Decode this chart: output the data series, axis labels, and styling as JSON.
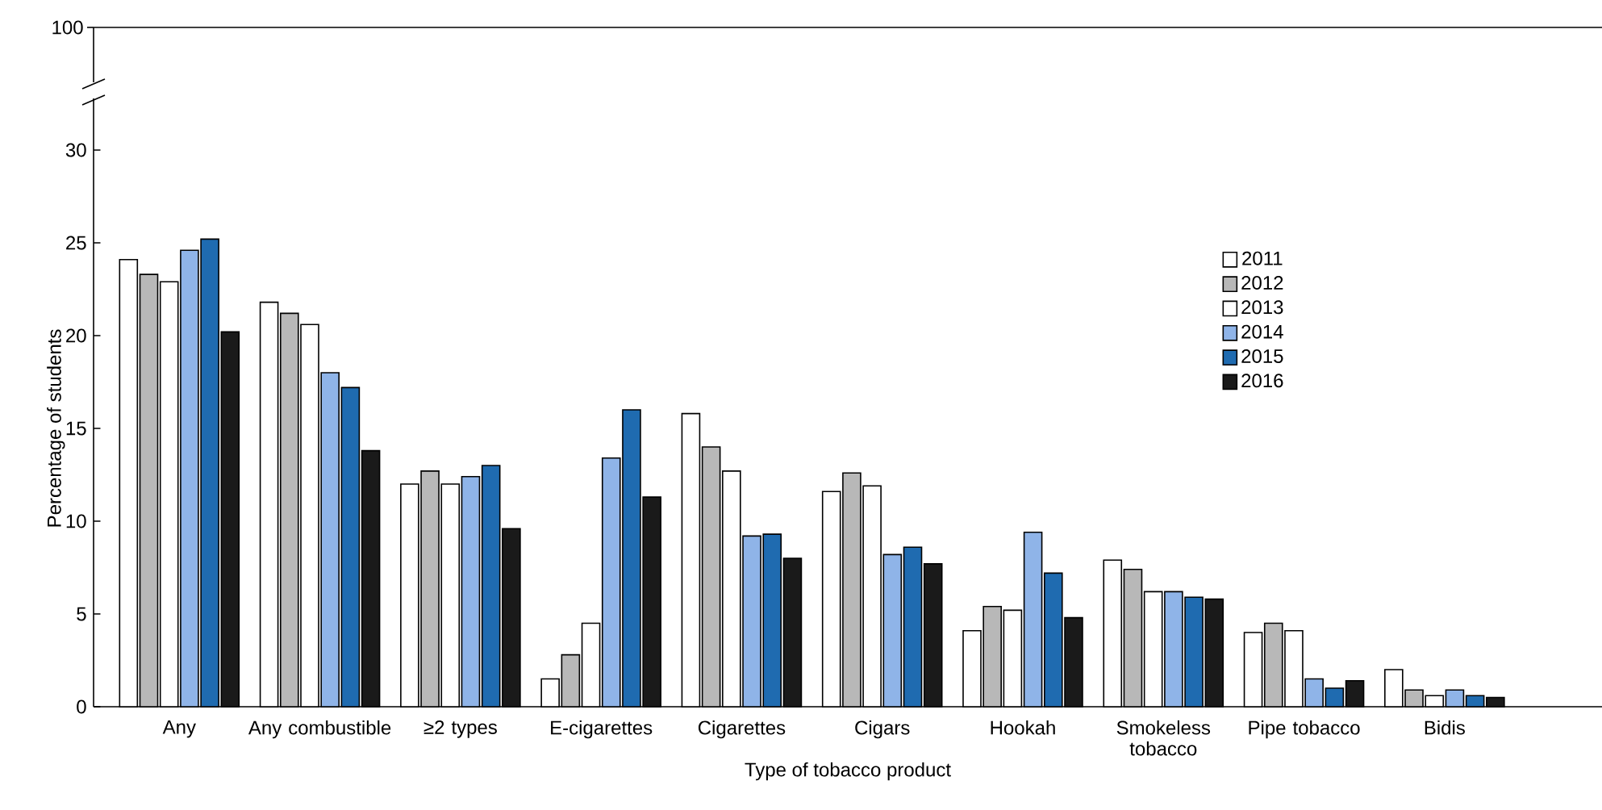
{
  "chart_data": {
    "type": "bar",
    "xlabel": "Type of tobacco product",
    "ylabel": "Percentage of students",
    "categories": [
      "Any",
      "Any combustible",
      "≥2 types",
      "E-cigarettes",
      "Cigarettes",
      "Cigars",
      "Hookah",
      "Smokeless tobacco",
      "Pipe tobacco",
      "Bidis"
    ],
    "series": [
      {
        "name": "2011",
        "color": "#ffffff",
        "values": [
          24.1,
          21.8,
          12.0,
          1.5,
          15.8,
          11.6,
          4.1,
          7.9,
          4.0,
          2.0
        ]
      },
      {
        "name": "2012",
        "color": "#b8b8b8",
        "values": [
          23.3,
          21.2,
          12.7,
          2.8,
          14.0,
          12.6,
          5.4,
          7.4,
          4.5,
          0.9
        ]
      },
      {
        "name": "2013",
        "color": "#ffffff",
        "values": [
          22.9,
          20.6,
          12.0,
          4.5,
          12.7,
          11.9,
          5.2,
          6.2,
          4.1,
          0.6
        ]
      },
      {
        "name": "2014",
        "color": "#8fb4e8",
        "values": [
          24.6,
          18.0,
          12.4,
          13.4,
          9.2,
          8.2,
          9.4,
          6.2,
          1.5,
          0.9
        ]
      },
      {
        "name": "2015",
        "color": "#1f6bb0",
        "values": [
          25.2,
          17.2,
          13.0,
          16.0,
          9.3,
          8.6,
          7.2,
          5.9,
          1.0,
          0.6
        ]
      },
      {
        "name": "2016",
        "color": "#1a1a1a",
        "values": [
          20.2,
          13.8,
          9.6,
          11.3,
          8.0,
          7.7,
          4.8,
          5.8,
          1.4,
          0.5
        ]
      }
    ],
    "ylim": [
      0,
      30
    ],
    "yticks": [
      0,
      5,
      10,
      15,
      20,
      25,
      30
    ],
    "annotations": [
      "100"
    ],
    "legend": "top right",
    "grid": false
  }
}
